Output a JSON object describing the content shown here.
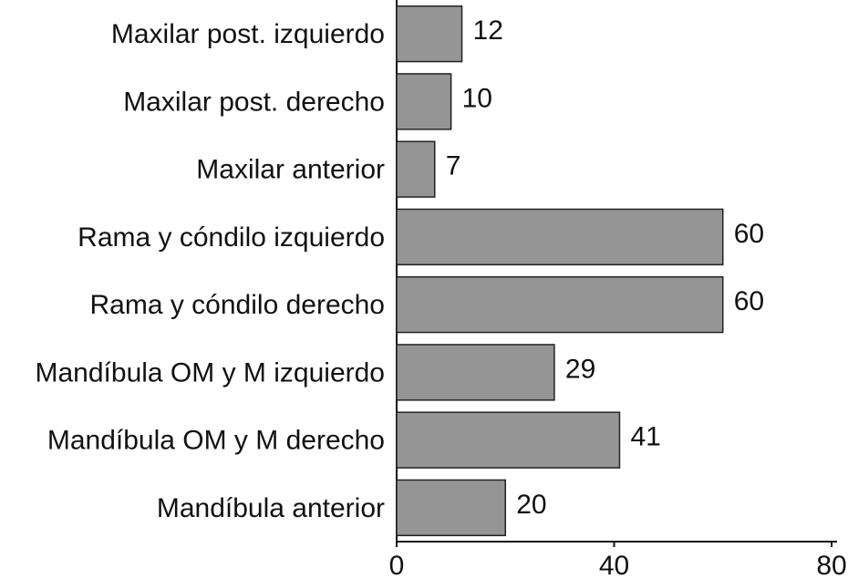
{
  "chart_data": {
    "type": "bar",
    "orientation": "horizontal",
    "categories": [
      "Maxilar post. izquierdo",
      "Maxilar post. derecho",
      "Maxilar anterior",
      "Rama y cóndilo izquierdo",
      "Rama y cóndilo derecho",
      "Mandíbula OM y M izquierdo",
      "Mandíbula OM y M derecho",
      "Mandíbula anterior"
    ],
    "values": [
      12,
      10,
      7,
      60,
      60,
      29,
      41,
      20
    ],
    "color": "#959595",
    "xlim": [
      0,
      80
    ],
    "xticks": [
      0,
      40,
      80
    ]
  }
}
